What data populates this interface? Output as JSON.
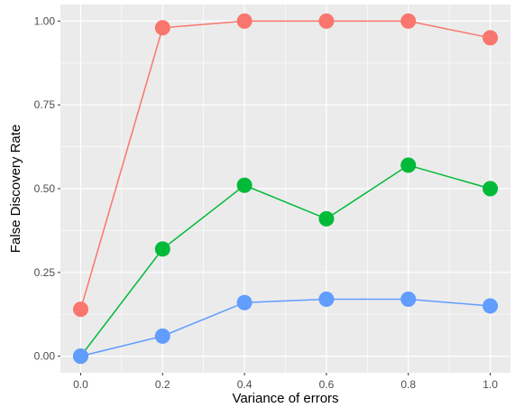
{
  "chart_data": {
    "type": "line",
    "title": "",
    "xlabel": "Variance of errors",
    "ylabel": "False Discovery Rate",
    "x": [
      0.0,
      0.2,
      0.4,
      0.6,
      0.8,
      1.0
    ],
    "xlim": [
      0.0,
      1.0
    ],
    "ylim": [
      0.0,
      1.0
    ],
    "x_ticks": [
      0.0,
      0.2,
      0.4,
      0.6,
      0.8,
      1.0
    ],
    "x_tick_labels": [
      "0.0",
      "0.2",
      "0.4",
      "0.6",
      "0.8",
      "1.0"
    ],
    "y_ticks": [
      0.0,
      0.25,
      0.5,
      0.75,
      1.0
    ],
    "y_tick_labels": [
      "0.00",
      "0.25",
      "0.50",
      "0.75",
      "1.00"
    ],
    "grid": true,
    "legend": "none",
    "series": [
      {
        "color": "#F8766D",
        "values": [
          0.14,
          0.98,
          1.0,
          1.0,
          1.0,
          0.95
        ]
      },
      {
        "color": "#00BA38",
        "values": [
          0.0,
          0.32,
          0.51,
          0.41,
          0.57,
          0.5
        ]
      },
      {
        "color": "#619CFF",
        "values": [
          0.0,
          0.06,
          0.16,
          0.17,
          0.17,
          0.15
        ]
      }
    ],
    "panel_background": "#EBEBEB",
    "gridline_color": "#FFFFFF"
  }
}
